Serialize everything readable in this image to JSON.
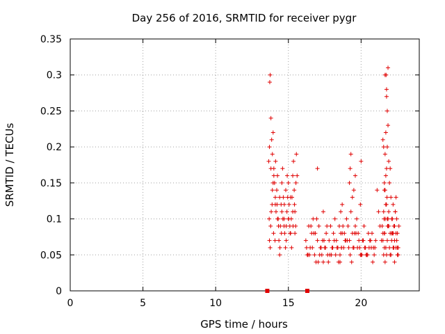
{
  "chart_data": {
    "type": "scatter",
    "title": "Day 256 of 2016, SRMTID for receiver pygr",
    "xlabel": "GPS time / hours",
    "ylabel": "SRMTID / TECUs",
    "xlim": [
      0,
      24
    ],
    "ylim": [
      0,
      0.35
    ],
    "xticks": [
      0,
      5,
      10,
      15,
      20
    ],
    "xtick_labels": [
      "0",
      "5",
      "10",
      "15",
      "20"
    ],
    "yticks": [
      0,
      0.05,
      0.1,
      0.15,
      0.2,
      0.25,
      0.3,
      0.35
    ],
    "ytick_labels": [
      "0",
      "0.05",
      "0.1",
      "0.15",
      "0.2",
      "0.25",
      "0.3",
      "0.35"
    ],
    "grid": true,
    "marker": "+",
    "marker_color": "#e00000",
    "gap_marks_x": [
      13.55,
      16.3
    ],
    "series": [
      {
        "name": "SRMTID",
        "x": [
          13.65,
          13.7,
          13.75,
          13.8,
          13.72,
          13.85,
          13.9,
          13.95,
          14.0,
          14.05,
          14.1,
          13.68,
          13.78,
          13.88,
          13.98,
          14.08,
          14.15,
          14.2,
          14.25,
          14.3,
          14.35,
          14.4,
          14.45,
          14.5,
          14.55,
          14.6,
          14.65,
          14.7,
          14.75,
          14.8,
          14.85,
          14.9,
          14.95,
          15.0,
          15.05,
          15.1,
          15.15,
          15.2,
          15.25,
          15.3,
          15.35,
          15.4,
          15.45,
          15.5,
          15.55,
          15.6,
          13.7,
          13.75,
          13.82,
          13.9,
          14.0,
          14.12,
          14.22,
          14.32,
          14.42,
          14.52,
          14.62,
          14.72,
          14.82,
          14.92,
          15.02,
          15.12,
          15.22,
          15.32,
          15.42,
          15.52,
          13.8,
          13.95,
          14.1,
          14.25,
          14.4,
          14.55,
          14.7,
          14.85,
          15.0,
          15.15,
          15.3,
          15.45,
          16.2,
          16.3,
          16.4,
          16.5,
          16.6,
          16.7,
          16.8,
          16.9,
          17.0,
          17.1,
          17.2,
          17.3,
          17.4,
          17.5,
          17.6,
          17.7,
          17.8,
          17.9,
          18.0,
          18.1,
          18.2,
          18.3,
          18.4,
          18.5,
          18.6,
          18.7,
          18.8,
          18.9,
          19.0,
          19.1,
          19.2,
          19.3,
          19.4,
          19.5,
          19.6,
          19.7,
          19.8,
          19.9,
          20.0,
          20.1,
          20.2,
          20.3,
          20.4,
          20.5,
          20.6,
          20.7,
          20.8,
          20.9,
          21.0,
          16.25,
          16.45,
          16.65,
          16.85,
          17.05,
          17.25,
          17.45,
          17.65,
          17.85,
          18.05,
          18.25,
          18.45,
          18.65,
          18.85,
          19.05,
          19.25,
          19.45,
          19.65,
          19.85,
          20.05,
          20.25,
          20.45,
          20.65,
          20.85,
          16.35,
          16.55,
          16.75,
          16.95,
          17.15,
          17.35,
          17.55,
          17.75,
          17.95,
          18.15,
          18.35,
          18.55,
          18.75,
          18.95,
          19.15,
          19.35,
          19.55,
          19.75,
          19.95,
          20.15,
          20.35,
          20.55,
          20.75,
          20.95,
          18.55,
          18.6,
          18.65,
          18.7,
          19.2,
          19.25,
          19.3,
          19.4,
          19.5,
          19.6,
          19.95,
          20.0,
          17.0,
          17.4,
          21.1,
          21.2,
          21.3,
          21.4,
          21.45,
          21.5,
          21.55,
          21.6,
          21.65,
          21.7,
          21.75,
          21.8,
          21.85,
          21.9,
          21.95,
          22.0,
          22.05,
          22.1,
          22.15,
          22.2,
          22.25,
          22.3,
          22.35,
          22.4,
          22.45,
          22.5,
          22.55,
          22.6,
          21.5,
          21.55,
          21.6,
          21.65,
          21.7,
          21.75,
          21.8,
          21.85,
          21.9,
          21.95,
          22.0,
          22.05,
          22.1,
          22.15,
          22.2,
          22.25,
          22.3,
          22.35,
          22.4,
          22.45,
          22.5,
          22.55,
          21.6,
          21.65,
          21.75,
          21.8,
          21.85,
          21.5,
          21.55,
          21.7,
          21.6,
          21.65,
          21.7,
          21.72,
          21.75,
          21.78,
          21.8,
          21.85,
          21.9,
          22.0,
          22.1,
          22.2,
          22.3,
          22.4,
          22.5,
          21.58,
          21.62,
          21.66,
          21.74,
          21.82
        ],
        "y": [
          0.18,
          0.2,
          0.3,
          0.24,
          0.29,
          0.21,
          0.19,
          0.22,
          0.17,
          0.15,
          0.13,
          0.1,
          0.09,
          0.12,
          0.08,
          0.07,
          0.11,
          0.14,
          0.16,
          0.1,
          0.07,
          0.05,
          0.09,
          0.12,
          0.15,
          0.17,
          0.13,
          0.1,
          0.08,
          0.06,
          0.09,
          0.11,
          0.13,
          0.15,
          0.12,
          0.09,
          0.08,
          0.1,
          0.13,
          0.16,
          0.18,
          0.14,
          0.11,
          0.09,
          0.19,
          0.16,
          0.07,
          0.06,
          0.11,
          0.14,
          0.16,
          0.18,
          0.12,
          0.09,
          0.06,
          0.08,
          0.1,
          0.12,
          0.14,
          0.16,
          0.1,
          0.08,
          0.06,
          0.09,
          0.12,
          0.15,
          0.17,
          0.15,
          0.12,
          0.1,
          0.13,
          0.11,
          0.09,
          0.07,
          0.1,
          0.13,
          0.11,
          0.08,
          0.07,
          0.05,
          0.09,
          0.06,
          0.08,
          0.1,
          0.05,
          0.04,
          0.07,
          0.09,
          0.06,
          0.05,
          0.04,
          0.06,
          0.08,
          0.05,
          0.07,
          0.09,
          0.06,
          0.08,
          0.1,
          0.07,
          0.06,
          0.09,
          0.11,
          0.08,
          0.06,
          0.07,
          0.1,
          0.09,
          0.07,
          0.11,
          0.08,
          0.06,
          0.09,
          0.1,
          0.08,
          0.06,
          0.05,
          0.07,
          0.09,
          0.06,
          0.05,
          0.08,
          0.07,
          0.06,
          0.04,
          0.05,
          0.07,
          0.06,
          0.05,
          0.06,
          0.08,
          0.04,
          0.06,
          0.07,
          0.09,
          0.05,
          0.06,
          0.05,
          0.04,
          0.06,
          0.08,
          0.07,
          0.05,
          0.06,
          0.08,
          0.07,
          0.05,
          0.06,
          0.05,
          0.07,
          0.06,
          0.05,
          0.09,
          0.08,
          0.1,
          0.05,
          0.07,
          0.06,
          0.04,
          0.05,
          0.07,
          0.06,
          0.05,
          0.09,
          0.07,
          0.06,
          0.04,
          0.08,
          0.06,
          0.05,
          0.07,
          0.05,
          0.06,
          0.08,
          0.06,
          0.04,
          0.08,
          0.06,
          0.12,
          0.15,
          0.17,
          0.19,
          0.13,
          0.14,
          0.16,
          0.12,
          0.18,
          0.17,
          0.11,
          0.14,
          0.11,
          0.09,
          0.07,
          0.09,
          0.08,
          0.11,
          0.14,
          0.19,
          0.22,
          0.27,
          0.2,
          0.23,
          0.18,
          0.15,
          0.17,
          0.13,
          0.1,
          0.08,
          0.12,
          0.09,
          0.07,
          0.11,
          0.13,
          0.1,
          0.08,
          0.06,
          0.09,
          0.07,
          0.05,
          0.06,
          0.04,
          0.06,
          0.05,
          0.07,
          0.09,
          0.11,
          0.06,
          0.08,
          0.05,
          0.07,
          0.1,
          0.08,
          0.06,
          0.09,
          0.11,
          0.08,
          0.07,
          0.06,
          0.05,
          0.08,
          0.3,
          0.28,
          0.25,
          0.31,
          0.21,
          0.2,
          0.16,
          0.15,
          0.14,
          0.12,
          0.3,
          0.17,
          0.13,
          0.1,
          0.1,
          0.09,
          0.05,
          0.08,
          0.06,
          0.04,
          0.06,
          0.05,
          0.1,
          0.08,
          0.1,
          0.12,
          0.09
        ]
      }
    ]
  }
}
